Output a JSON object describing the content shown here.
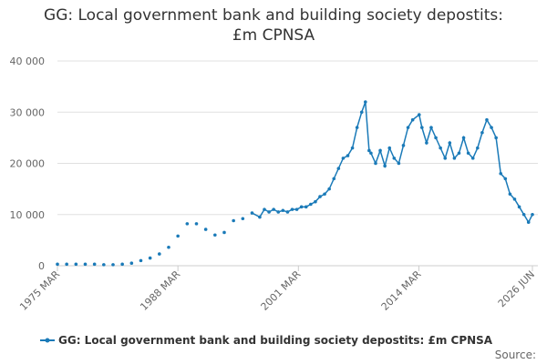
{
  "chart_data": {
    "type": "line",
    "title": "GG: Local government bank and building society depostits: £m CPNSA",
    "source": "Source:",
    "x": [
      1975.17,
      1976.17,
      1977.17,
      1978.17,
      1979.17,
      1980.17,
      1981.17,
      1982.17,
      1983.17,
      1984.17,
      1985.17,
      1986.17,
      1987.17,
      1988.17,
      1989.17,
      1990.17,
      1991.17,
      1992.17,
      1993.17,
      1994.17,
      1995.17,
      1996.17,
      1997.0,
      1997.5,
      1998.0,
      1998.5,
      1999.0,
      1999.5,
      2000.0,
      2000.5,
      2001.0,
      2001.5,
      2002.0,
      2002.5,
      2003.0,
      2003.5,
      2004.0,
      2004.5,
      2005.0,
      2005.5,
      2006.0,
      2006.5,
      2007.0,
      2007.5,
      2008.0,
      2008.4,
      2008.8,
      2009.0,
      2009.5,
      2010.0,
      2010.5,
      2011.0,
      2011.5,
      2012.0,
      2012.5,
      2013.0,
      2013.5,
      2014.2,
      2014.5,
      2015.0,
      2015.5,
      2016.0,
      2016.5,
      2017.0,
      2017.5,
      2018.0,
      2018.5,
      2019.0,
      2019.5,
      2020.0,
      2020.5,
      2021.0,
      2021.5,
      2022.0,
      2022.5,
      2023.0,
      2023.5,
      2024.0,
      2024.5,
      2025.0,
      2025.5,
      2026.0,
      2026.42
    ],
    "series": [
      {
        "name": "GG: Local government bank and building society depostits: £m CPNSA",
        "color": "#1a7ab8",
        "values": [
          300,
          300,
          300,
          300,
          300,
          200,
          200,
          300,
          500,
          1000,
          1500,
          2300,
          3600,
          5800,
          8200,
          8200,
          7100,
          6000,
          6500,
          8800,
          9200,
          10300,
          9500,
          11000,
          10500,
          11000,
          10500,
          10800,
          10500,
          11000,
          11000,
          11500,
          11500,
          12000,
          12500,
          13500,
          14000,
          15000,
          17000,
          19000,
          21000,
          21500,
          23000,
          27000,
          30000,
          32000,
          22500,
          22000,
          20000,
          22500,
          19500,
          23000,
          21000,
          20000,
          23500,
          27000,
          28500,
          29500,
          27000,
          24000,
          27000,
          25000,
          23000,
          21000,
          24000,
          21000,
          22000,
          25000,
          22000,
          21000,
          23000,
          26000,
          28500,
          27000,
          25000,
          18000,
          17000,
          14000,
          13000,
          11500,
          10000,
          8500,
          10000
        ]
      }
    ],
    "xlim": [
      1975.17,
      2026.42
    ],
    "xticks": [
      {
        "value": 1975.17,
        "label": "1975 MAR"
      },
      {
        "value": 1988.17,
        "label": "1988 MAR"
      },
      {
        "value": 2001.17,
        "label": "2001 MAR"
      },
      {
        "value": 2014.17,
        "label": "2014 MAR"
      },
      {
        "value": 2026.42,
        "label": "2026 JUN"
      }
    ],
    "ylim": [
      0,
      40000
    ],
    "yticks": [
      0,
      {
        "value": 10000,
        "label": "10 000"
      },
      {
        "value": 20000,
        "label": "20 000"
      },
      {
        "value": 30000,
        "label": "30 000"
      },
      {
        "value": 40000,
        "label": "40 000"
      }
    ],
    "grid": true
  }
}
